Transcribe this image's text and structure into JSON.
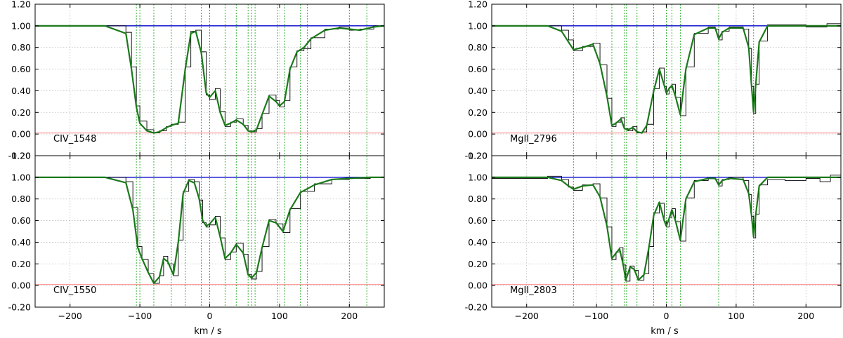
{
  "figure": {
    "xlabel_left": "km / s",
    "xlabel_right": "km / s"
  },
  "colors": {
    "data": "#000000",
    "model": "#1a7a1a",
    "continuum": "#0000cc",
    "error": "#ff8888",
    "component": "#22aa22",
    "grid": "#bbbbbb"
  },
  "chart_data": [
    {
      "type": "line",
      "label": "CIV_1548",
      "xlim": [
        -250,
        250
      ],
      "ylim": [
        -0.2,
        1.2
      ],
      "xticks": [
        -200,
        -100,
        0,
        100,
        200
      ],
      "yticks": [
        "-0.20",
        "0.00",
        "0.20",
        "0.40",
        "0.60",
        "0.80",
        "1.00",
        "1.20"
      ],
      "grid": true,
      "continuum": 1.0,
      "component_velocities": [
        -105,
        -100,
        -80,
        -55,
        -35,
        -12,
        0,
        22,
        38,
        55,
        60,
        65,
        97,
        107,
        130,
        140,
        200,
        225
      ],
      "model": {
        "x": [
          -250,
          -150,
          -120,
          -112,
          -105,
          -100,
          -90,
          -80,
          -72,
          -62,
          -55,
          -45,
          -35,
          -27,
          -20,
          -12,
          -5,
          0,
          8,
          15,
          22,
          30,
          38,
          48,
          55,
          60,
          67,
          75,
          85,
          95,
          100,
          107,
          115,
          125,
          135,
          145,
          165,
          185,
          200,
          215,
          235,
          250
        ],
        "y": [
          1.0,
          1.0,
          0.93,
          0.6,
          0.25,
          0.1,
          0.03,
          0.01,
          0.02,
          0.06,
          0.08,
          0.1,
          0.6,
          0.93,
          0.95,
          0.75,
          0.38,
          0.34,
          0.4,
          0.2,
          0.08,
          0.1,
          0.13,
          0.09,
          0.03,
          0.02,
          0.04,
          0.18,
          0.35,
          0.3,
          0.26,
          0.3,
          0.6,
          0.76,
          0.8,
          0.88,
          0.96,
          0.98,
          0.97,
          0.96,
          0.99,
          1.0
        ]
      },
      "data": {
        "x": [
          -250,
          -150,
          -120,
          -112,
          -105,
          -100,
          -90,
          -80,
          -72,
          -62,
          -55,
          -45,
          -35,
          -27,
          -20,
          -12,
          -5,
          0,
          8,
          15,
          22,
          30,
          38,
          48,
          55,
          60,
          67,
          75,
          85,
          95,
          100,
          107,
          115,
          125,
          135,
          145,
          165,
          185,
          200,
          215,
          235,
          250
        ],
        "y": [
          1.0,
          1.0,
          0.94,
          0.62,
          0.26,
          0.12,
          0.04,
          0.01,
          0.03,
          0.07,
          0.09,
          0.11,
          0.62,
          0.95,
          0.96,
          0.76,
          0.36,
          0.32,
          0.42,
          0.21,
          0.07,
          0.11,
          0.14,
          0.08,
          0.03,
          0.02,
          0.05,
          0.19,
          0.36,
          0.31,
          0.25,
          0.31,
          0.62,
          0.77,
          0.79,
          0.89,
          0.97,
          0.99,
          0.96,
          0.97,
          1.0,
          1.0
        ]
      },
      "error": 0.01
    },
    {
      "type": "line",
      "label": "CIV_1550",
      "xlim": [
        -250,
        250
      ],
      "ylim": [
        -0.2,
        1.2
      ],
      "xticks": [
        -200,
        -100,
        0,
        100,
        200
      ],
      "yticks": [
        "-0.20",
        "0.00",
        "0.20",
        "0.40",
        "0.60",
        "0.80",
        "1.00",
        "1.20"
      ],
      "grid": true,
      "continuum": 1.0,
      "component_velocities": [
        -105,
        -100,
        -80,
        -55,
        -35,
        -12,
        0,
        22,
        38,
        55,
        60,
        65,
        97,
        107,
        130,
        140,
        200,
        225
      ],
      "model": {
        "x": [
          -250,
          -150,
          -120,
          -110,
          -103,
          -97,
          -88,
          -80,
          -72,
          -66,
          -60,
          -52,
          -45,
          -38,
          -30,
          -22,
          -15,
          -10,
          -5,
          0,
          8,
          15,
          22,
          30,
          38,
          48,
          55,
          60,
          67,
          75,
          85,
          95,
          105,
          115,
          130,
          150,
          175,
          200,
          230,
          250
        ],
        "y": [
          1.0,
          1.0,
          0.95,
          0.7,
          0.35,
          0.25,
          0.12,
          0.02,
          0.08,
          0.25,
          0.22,
          0.1,
          0.4,
          0.85,
          0.97,
          0.95,
          0.8,
          0.6,
          0.55,
          0.57,
          0.63,
          0.45,
          0.25,
          0.3,
          0.38,
          0.3,
          0.1,
          0.07,
          0.12,
          0.35,
          0.6,
          0.58,
          0.5,
          0.7,
          0.86,
          0.93,
          0.98,
          0.99,
          1.0,
          1.0
        ]
      },
      "data": {
        "x": [
          -250,
          -150,
          -120,
          -110,
          -103,
          -97,
          -88,
          -80,
          -72,
          -66,
          -60,
          -52,
          -45,
          -38,
          -30,
          -22,
          -15,
          -10,
          -5,
          0,
          8,
          15,
          22,
          30,
          38,
          48,
          55,
          60,
          67,
          75,
          85,
          95,
          105,
          115,
          130,
          150,
          175,
          200,
          230,
          250
        ],
        "y": [
          1.0,
          1.0,
          0.96,
          0.72,
          0.36,
          0.24,
          0.11,
          0.02,
          0.09,
          0.27,
          0.2,
          0.09,
          0.42,
          0.87,
          0.98,
          0.96,
          0.79,
          0.58,
          0.54,
          0.56,
          0.64,
          0.44,
          0.24,
          0.31,
          0.39,
          0.29,
          0.1,
          0.06,
          0.13,
          0.36,
          0.61,
          0.57,
          0.49,
          0.71,
          0.87,
          0.94,
          0.98,
          0.99,
          1.0,
          1.0
        ]
      },
      "error": 0.01
    },
    {
      "type": "line",
      "label": "MgII_2796",
      "xlim": [
        -250,
        250
      ],
      "ylim": [
        -0.2,
        1.2
      ],
      "xticks": [
        -200,
        -100,
        0,
        100,
        200
      ],
      "yticks": [
        "-0.20",
        "0.00",
        "0.20",
        "0.40",
        "0.60",
        "0.80",
        "1.00",
        "1.20"
      ],
      "grid": true,
      "continuum": 1.0,
      "component_velocities": [
        -133,
        -78,
        -60,
        -57,
        -42,
        -18,
        0,
        8,
        20,
        75,
        125
      ],
      "model": {
        "x": [
          -250,
          -170,
          -150,
          -140,
          -133,
          -120,
          -105,
          -95,
          -85,
          -78,
          -72,
          -65,
          -60,
          -55,
          -48,
          -42,
          -35,
          -28,
          -18,
          -10,
          -3,
          0,
          4,
          8,
          13,
          20,
          28,
          40,
          60,
          70,
          75,
          80,
          90,
          110,
          118,
          122,
          125,
          128,
          133,
          145,
          250
        ],
        "y": [
          1.0,
          1.0,
          0.95,
          0.85,
          0.78,
          0.8,
          0.83,
          0.65,
          0.35,
          0.08,
          0.1,
          0.14,
          0.05,
          0.04,
          0.06,
          0.02,
          0.01,
          0.08,
          0.4,
          0.6,
          0.45,
          0.38,
          0.42,
          0.45,
          0.35,
          0.18,
          0.6,
          0.92,
          0.98,
          0.98,
          0.88,
          0.94,
          0.98,
          0.98,
          0.8,
          0.45,
          0.2,
          0.45,
          0.85,
          1.0,
          1.0
        ]
      },
      "data": {
        "x": [
          -250,
          -170,
          -150,
          -140,
          -133,
          -120,
          -105,
          -95,
          -85,
          -78,
          -72,
          -65,
          -60,
          -55,
          -48,
          -42,
          -35,
          -28,
          -18,
          -10,
          -3,
          0,
          4,
          8,
          13,
          20,
          28,
          40,
          60,
          70,
          75,
          80,
          90,
          110,
          118,
          122,
          125,
          128,
          133,
          145,
          200,
          230,
          250
        ],
        "y": [
          1.0,
          1.0,
          0.96,
          0.87,
          0.77,
          0.81,
          0.84,
          0.64,
          0.33,
          0.07,
          0.11,
          0.15,
          0.05,
          0.03,
          0.07,
          0.01,
          0.02,
          0.09,
          0.42,
          0.61,
          0.44,
          0.37,
          0.43,
          0.46,
          0.34,
          0.17,
          0.62,
          0.93,
          0.99,
          0.97,
          0.87,
          0.95,
          0.99,
          0.97,
          0.79,
          0.44,
          0.19,
          0.46,
          0.86,
          1.01,
          0.99,
          1.02,
          1.0
        ]
      },
      "error": 0.01
    },
    {
      "type": "line",
      "label": "MgII_2803",
      "xlim": [
        -250,
        250
      ],
      "ylim": [
        -0.2,
        1.2
      ],
      "xticks": [
        -200,
        -100,
        0,
        100,
        200
      ],
      "yticks": [
        "-0.20",
        "0.00",
        "0.20",
        "0.40",
        "0.60",
        "0.80",
        "1.00",
        "1.20"
      ],
      "grid": true,
      "continuum": 1.0,
      "component_velocities": [
        -133,
        -78,
        -60,
        -57,
        -42,
        -18,
        0,
        8,
        20,
        75,
        125
      ],
      "model": {
        "x": [
          -250,
          -170,
          -150,
          -140,
          -133,
          -120,
          -105,
          -95,
          -85,
          -78,
          -72,
          -67,
          -62,
          -58,
          -52,
          -46,
          -40,
          -32,
          -25,
          -18,
          -10,
          -3,
          0,
          4,
          8,
          13,
          20,
          28,
          40,
          60,
          70,
          75,
          80,
          90,
          110,
          118,
          122,
          125,
          128,
          133,
          145,
          250
        ],
        "y": [
          1.0,
          1.0,
          0.97,
          0.92,
          0.89,
          0.92,
          0.93,
          0.82,
          0.55,
          0.25,
          0.3,
          0.34,
          0.2,
          0.05,
          0.17,
          0.15,
          0.05,
          0.1,
          0.35,
          0.65,
          0.77,
          0.6,
          0.55,
          0.62,
          0.7,
          0.6,
          0.42,
          0.8,
          0.96,
          0.99,
          0.99,
          0.93,
          0.97,
          0.99,
          0.98,
          0.85,
          0.65,
          0.45,
          0.65,
          0.92,
          1.0,
          1.0
        ]
      },
      "data": {
        "x": [
          -250,
          -200,
          -170,
          -150,
          -140,
          -133,
          -120,
          -105,
          -95,
          -85,
          -78,
          -72,
          -67,
          -62,
          -58,
          -52,
          -46,
          -40,
          -32,
          -25,
          -18,
          -10,
          -3,
          0,
          4,
          8,
          13,
          20,
          28,
          40,
          60,
          70,
          75,
          80,
          90,
          110,
          118,
          122,
          125,
          128,
          133,
          145,
          170,
          200,
          220,
          235,
          250
        ],
        "y": [
          0.99,
          0.99,
          1.01,
          0.98,
          0.91,
          0.88,
          0.93,
          0.94,
          0.81,
          0.54,
          0.24,
          0.31,
          0.35,
          0.19,
          0.04,
          0.18,
          0.14,
          0.05,
          0.11,
          0.36,
          0.67,
          0.76,
          0.59,
          0.54,
          0.63,
          0.71,
          0.59,
          0.41,
          0.81,
          0.97,
          0.99,
          0.98,
          0.92,
          0.98,
          1.0,
          0.97,
          0.84,
          0.64,
          0.44,
          0.66,
          0.93,
          0.98,
          0.97,
          0.99,
          0.96,
          1.02,
          0.98
        ]
      },
      "error": 0.01
    }
  ]
}
